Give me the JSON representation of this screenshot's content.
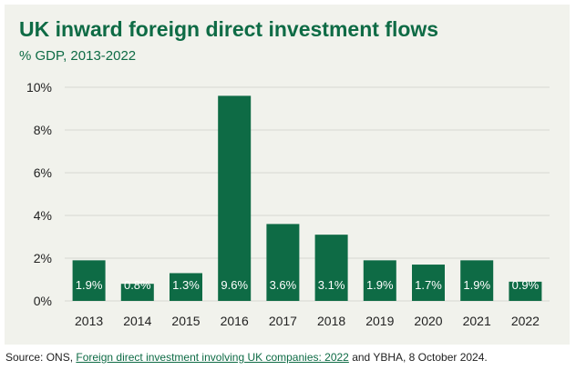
{
  "colors": {
    "background": "#f1f2ec",
    "bar": "#0e6b45",
    "title": "#0e6b45",
    "grid": "#d8d8d2",
    "axis_text": "#222222"
  },
  "source": {
    "prefix": "Source: ONS, ",
    "link_text": "Foreign direct investment involving UK companies: 2022",
    "suffix": " and YBHA, 8 October 2024."
  },
  "chart_data": {
    "type": "bar",
    "title": "UK inward foreign direct investment flows",
    "subtitle": "% GDP, 2013-2022",
    "categories": [
      "2013",
      "2014",
      "2015",
      "2016",
      "2017",
      "2018",
      "2019",
      "2020",
      "2021",
      "2022"
    ],
    "values": [
      1.9,
      0.8,
      1.3,
      9.6,
      3.6,
      3.1,
      1.9,
      1.7,
      1.9,
      0.9
    ],
    "data_labels": [
      "1.9%",
      "0.8%",
      "1.3%",
      "9.6%",
      "3.6%",
      "3.1%",
      "1.9%",
      "1.7%",
      "1.9%",
      "0.9%"
    ],
    "y_ticks": [
      0,
      2,
      4,
      6,
      8,
      10
    ],
    "y_tick_labels": [
      "0%",
      "2%",
      "4%",
      "6%",
      "8%",
      "10%"
    ],
    "ylim": [
      0,
      10
    ],
    "xlabel": "",
    "ylabel": "",
    "grid": true,
    "legend": "none"
  }
}
